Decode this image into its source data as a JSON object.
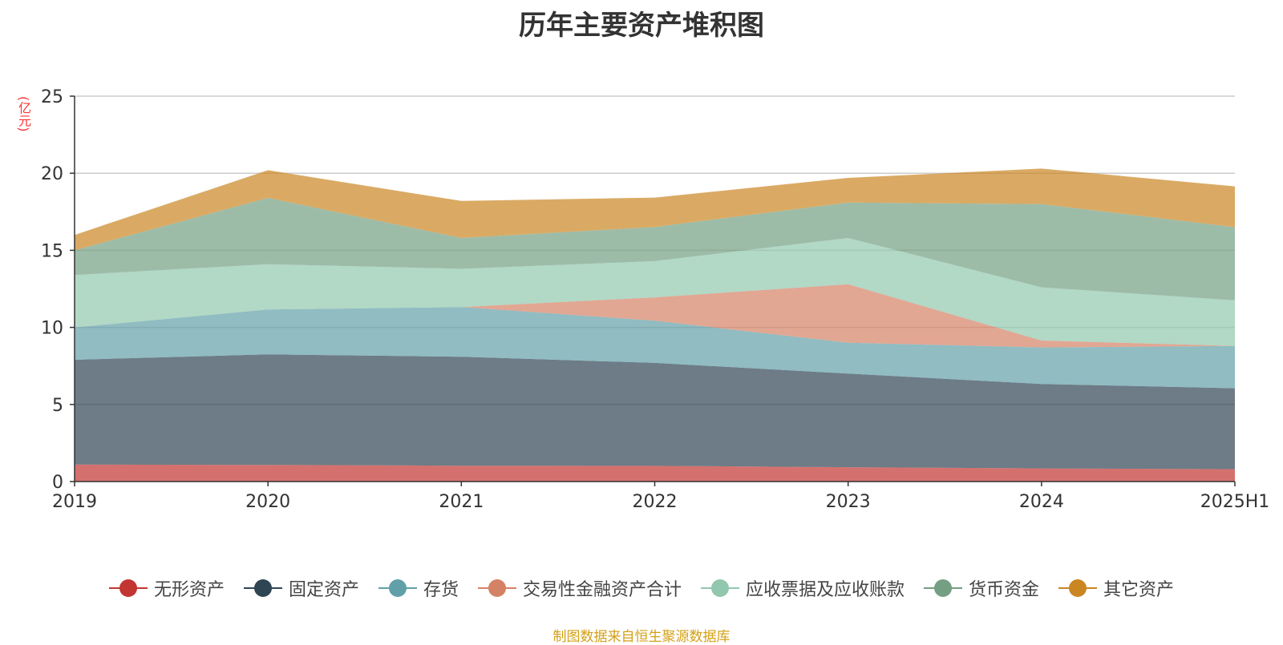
{
  "chart_data": {
    "type": "area",
    "stacked": true,
    "title": "历年主要资产堆积图",
    "ylabel": "(亿元)",
    "x": [
      "2019",
      "2020",
      "2021",
      "2022",
      "2023",
      "2024",
      "2025H1"
    ],
    "ylim": [
      0,
      25
    ],
    "yticks": [
      0,
      5,
      10,
      15,
      20,
      25
    ],
    "grid": true,
    "legend_position": "bottom",
    "series": [
      {
        "name": "无形资产",
        "color": "#c23531",
        "values": [
          1.1,
          1.08,
          1.03,
          1.02,
          0.93,
          0.85,
          0.8
        ]
      },
      {
        "name": "固定资产",
        "color": "#2f4554",
        "values": [
          6.8,
          7.17,
          7.07,
          6.68,
          6.07,
          5.48,
          5.25
        ]
      },
      {
        "name": "存货",
        "color": "#61a0a8",
        "values": [
          2.1,
          2.91,
          3.22,
          2.73,
          2.0,
          2.37,
          2.75
        ]
      },
      {
        "name": "交易性金融资产合计",
        "color": "#d48265",
        "values": [
          0.0,
          0.0,
          0.0,
          1.52,
          3.8,
          0.45,
          0.0
        ]
      },
      {
        "name": "应收票据及应收账款",
        "color": "#91c7ae",
        "values": [
          3.4,
          2.94,
          2.48,
          2.35,
          3.0,
          3.45,
          2.95
        ]
      },
      {
        "name": "货币资金",
        "color": "#749f83",
        "values": [
          1.6,
          4.3,
          2.0,
          2.22,
          2.3,
          5.4,
          4.75
        ]
      },
      {
        "name": "其它资产",
        "color": "#ca8622",
        "values": [
          1.0,
          1.8,
          2.4,
          1.9,
          1.6,
          2.3,
          2.65
        ]
      }
    ]
  },
  "source_note": "制图数据来自恒生聚源数据库"
}
